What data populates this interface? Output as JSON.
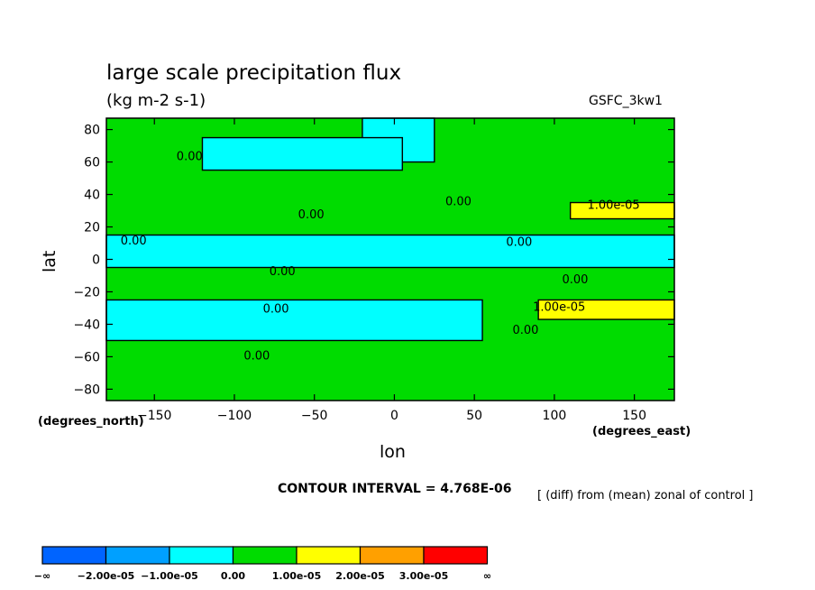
{
  "chart_data": {
    "type": "heatmap",
    "title": "large scale precipitation flux",
    "units": "(kg m-2 s-1)",
    "model_label": "GSFC_3kw1",
    "xlabel": "lon",
    "xlabel_units": "(degrees_east)",
    "ylabel": "lat",
    "ylabel_units": "(degrees_north)",
    "xlim": [
      -180,
      175
    ],
    "ylim": [
      -87,
      87
    ],
    "x_ticks": [
      -150,
      -100,
      -50,
      0,
      50,
      100,
      150
    ],
    "x_tick_labels": [
      "−150",
      "−100",
      "−50",
      "0",
      "50",
      "100",
      "150"
    ],
    "y_ticks": [
      80,
      60,
      40,
      20,
      0,
      -20,
      -40,
      -60,
      -80
    ],
    "y_tick_labels": [
      "80",
      "60",
      "40",
      "20",
      "0",
      "−20",
      "−40",
      "−60",
      "−80"
    ],
    "contour_interval_text": "CONTOUR INTERVAL = 4.768E-06",
    "subtitle": "[ (diff) from (mean) zonal of control ]",
    "contour_labels": [
      {
        "text": "0.00",
        "lon": -128,
        "lat": 64
      },
      {
        "text": "0.00",
        "lon": -52,
        "lat": 28
      },
      {
        "text": "0.00",
        "lon": 40,
        "lat": 36
      },
      {
        "text": "1.00e-05",
        "lon": 137,
        "lat": 34
      },
      {
        "text": "0.00",
        "lon": -163,
        "lat": 12
      },
      {
        "text": "0.00",
        "lon": 78,
        "lat": 11
      },
      {
        "text": "0.00",
        "lon": -70,
        "lat": -7
      },
      {
        "text": "0.00",
        "lon": 113,
        "lat": -12
      },
      {
        "text": "1.00e-05",
        "lon": 103,
        "lat": -29
      },
      {
        "text": "0.00",
        "lon": -74,
        "lat": -30
      },
      {
        "text": "0.00",
        "lon": 82,
        "lat": -43
      },
      {
        "text": "0.00",
        "lon": -86,
        "lat": -59
      }
    ],
    "regions": [
      {
        "level": "0-1e-05",
        "color": "#00dc00",
        "lat": [
          -87,
          87
        ],
        "lon": [
          -180,
          175
        ]
      },
      {
        "level": "-1e-05-0",
        "color": "#00ffff",
        "lat": [
          60,
          87
        ],
        "lon": [
          -20,
          25
        ]
      },
      {
        "level": "-1e-05-0",
        "color": "#00ffff",
        "lat": [
          55,
          75
        ],
        "lon": [
          -120,
          5
        ]
      },
      {
        "level": "-1e-05-0",
        "color": "#00ffff",
        "lat": [
          -5,
          15
        ],
        "lon": [
          -180,
          175
        ]
      },
      {
        "level": "-1e-05-0",
        "color": "#00ffff",
        "lat": [
          -50,
          -25
        ],
        "lon": [
          -180,
          55
        ]
      },
      {
        "level": "1e-05-2e-05",
        "color": "#ffff00",
        "lat": [
          25,
          35
        ],
        "lon": [
          110,
          175
        ]
      },
      {
        "level": "1e-05-2e-05",
        "color": "#ffff00",
        "lat": [
          -37,
          -25
        ],
        "lon": [
          90,
          175
        ]
      }
    ],
    "colorbar": {
      "colors": [
        "#0064ff",
        "#00a0ff",
        "#00ffff",
        "#00dc00",
        "#ffff00",
        "#ffa000",
        "#ff0000"
      ],
      "labels": [
        "−∞",
        "−2.00e-05",
        "−1.00e-05",
        "0.00",
        "1.00e-05",
        "2.00e-05",
        "3.00e-05",
        "∞"
      ]
    }
  }
}
